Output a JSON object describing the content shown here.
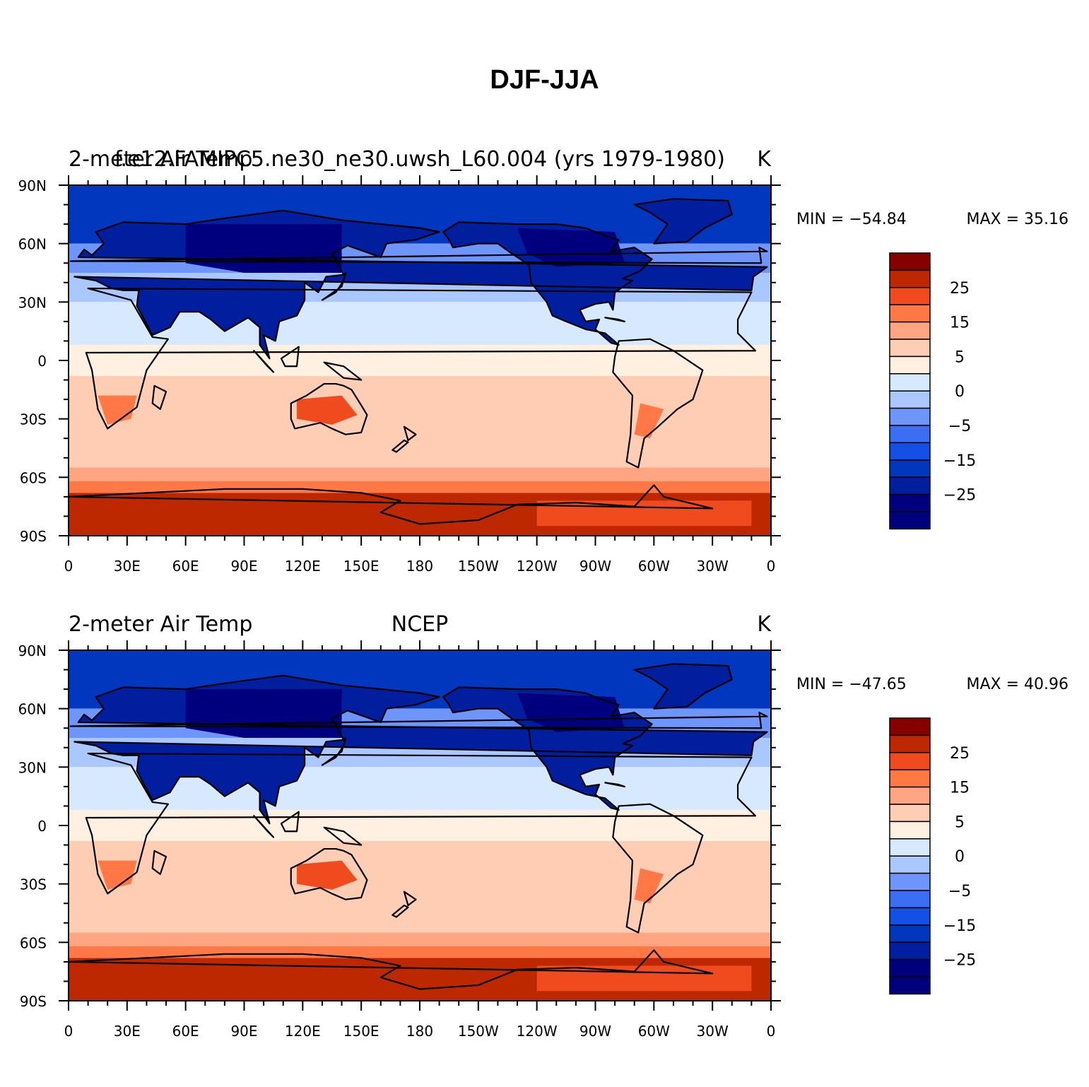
{
  "title": "DJF-JJA",
  "colors": {
    "levels": [
      -35,
      -30,
      -25,
      -20,
      -15,
      -10,
      -5,
      0,
      5,
      10,
      15,
      20,
      25,
      30
    ],
    "fills": [
      "#00007f",
      "#001e9e",
      "#0037be",
      "#1450e6",
      "#3c6ef5",
      "#6e96fa",
      "#aac8ff",
      "#d7e9ff",
      "#fff0e1",
      "#ffcdb4",
      "#ffa582",
      "#ff7846",
      "#f04b1e",
      "#be2800",
      "#870000"
    ],
    "coast": "#000000"
  },
  "colorbar_labels": [
    "25",
    "15",
    "5",
    "0",
    "−5",
    "−15",
    "−25"
  ],
  "chart_data": [
    {
      "type": "contour-map",
      "left_title": "2-meter Air Temp",
      "center_title": "f.e12.FAMIPC5.ne30_ne30.uwsh_L60.004 (yrs 1979-1980)",
      "right_title": "K",
      "min_label": "MIN = −54.84",
      "max_label": "MAX =   35.16",
      "min": -54.84,
      "max": 35.16,
      "variable": "2-meter Air Temp",
      "units": "K",
      "xlim": [
        0,
        360
      ],
      "ylim": [
        -90,
        90
      ],
      "xticks": [
        "0",
        "30E",
        "60E",
        "90E",
        "120E",
        "150E",
        "180",
        "150W",
        "120W",
        "90W",
        "60W",
        "30W",
        "0"
      ],
      "yticks": [
        "90N",
        "60N",
        "30N",
        "0",
        "30S",
        "60S",
        "90S"
      ]
    },
    {
      "type": "contour-map",
      "left_title": "2-meter Air Temp",
      "center_title": "NCEP",
      "right_title": "K",
      "min_label": "MIN = −47.65",
      "max_label": "MAX =   40.96",
      "min": -47.65,
      "max": 40.96,
      "variable": "2-meter Air Temp",
      "units": "K",
      "xlim": [
        0,
        360
      ],
      "ylim": [
        -90,
        90
      ],
      "xticks": [
        "0",
        "30E",
        "60E",
        "90E",
        "120E",
        "150E",
        "180",
        "150W",
        "120W",
        "90W",
        "60W",
        "30W",
        "0"
      ],
      "yticks": [
        "90N",
        "60N",
        "30N",
        "0",
        "30S",
        "60S",
        "90S"
      ]
    }
  ]
}
